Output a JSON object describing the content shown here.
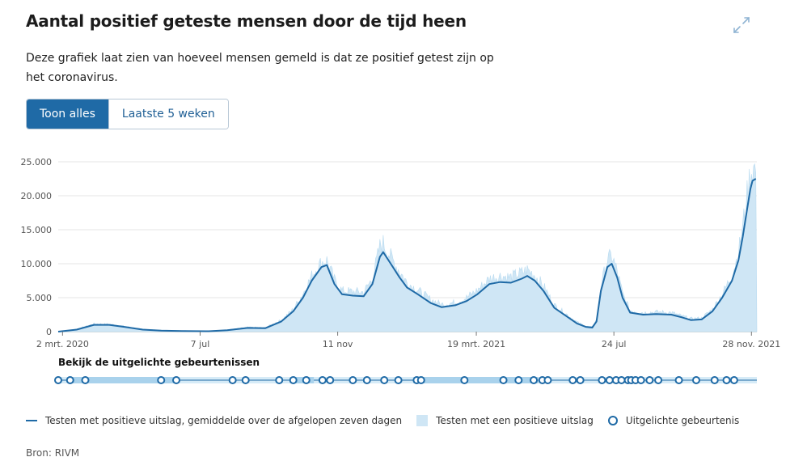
{
  "header": {
    "title": "Aantal positief geteste mensen door de tijd heen",
    "description": "Deze grafiek laat zien van hoeveel mensen gemeld is dat ze positief getest zijn op het coronavirus."
  },
  "toggle": {
    "all_label": "Toon alles",
    "last_weeks_label": "Laatste 5 weken"
  },
  "events": {
    "label": "Bekijk de uitgelichte gebeurtenissen",
    "dates": [
      "2020-02-27",
      "2020-03-09",
      "2020-03-23",
      "2020-06-01",
      "2020-06-15",
      "2020-08-06",
      "2020-08-18",
      "2020-09-18",
      "2020-10-01",
      "2020-10-13",
      "2020-10-28",
      "2020-11-04",
      "2020-11-25",
      "2020-12-08",
      "2020-12-24",
      "2021-01-06",
      "2021-01-23",
      "2021-01-27",
      "2021-03-08",
      "2021-04-13",
      "2021-04-27",
      "2021-05-11",
      "2021-05-19",
      "2021-05-24",
      "2021-06-16",
      "2021-06-23",
      "2021-07-13",
      "2021-07-20",
      "2021-07-26",
      "2021-07-31",
      "2021-08-06",
      "2021-08-09",
      "2021-08-13",
      "2021-08-18",
      "2021-08-26",
      "2021-09-03",
      "2021-09-22",
      "2021-10-08",
      "2021-10-25",
      "2021-11-05",
      "2021-11-12"
    ],
    "ranges": [
      {
        "start": "2020-03-09",
        "end": "2020-06-15"
      },
      {
        "start": "2020-09-28",
        "end": "2020-10-20"
      },
      {
        "start": "2021-01-20",
        "end": "2021-05-15"
      }
    ]
  },
  "chart_data": {
    "type": "area",
    "x_start": "2020-02-27",
    "x_end": "2021-12-03",
    "xticks": [
      {
        "date": "2020-03-02",
        "label": "2 mrt. 2020"
      },
      {
        "date": "2020-07-07",
        "label": "7 jul"
      },
      {
        "date": "2020-11-11",
        "label": "11 nov"
      },
      {
        "date": "2021-03-19",
        "label": "19 mrt. 2021"
      },
      {
        "date": "2021-07-24",
        "label": "24 jul"
      },
      {
        "date": "2021-11-28",
        "label": "28 nov. 2021"
      }
    ],
    "ylim": [
      0,
      25000
    ],
    "yticks": [
      0,
      5000,
      10000,
      15000,
      20000,
      25000
    ],
    "ytick_labels": [
      "0",
      "5.000",
      "10.000",
      "15.000",
      "20.000",
      "25.000"
    ],
    "grid": true,
    "series": [
      {
        "name": "Testen met positieve uitslag, gemiddelde over de afgelopen zeven dagen",
        "kind": "line",
        "points": [
          [
            "2020-02-27",
            0
          ],
          [
            "2020-03-15",
            300
          ],
          [
            "2020-03-31",
            1000
          ],
          [
            "2020-04-14",
            1000
          ],
          [
            "2020-04-28",
            700
          ],
          [
            "2020-05-15",
            300
          ],
          [
            "2020-06-01",
            150
          ],
          [
            "2020-06-20",
            100
          ],
          [
            "2020-07-15",
            60
          ],
          [
            "2020-08-01",
            200
          ],
          [
            "2020-08-20",
            550
          ],
          [
            "2020-09-05",
            500
          ],
          [
            "2020-09-20",
            1500
          ],
          [
            "2020-10-01",
            3000
          ],
          [
            "2020-10-10",
            5000
          ],
          [
            "2020-10-18",
            7500
          ],
          [
            "2020-10-27",
            9500
          ],
          [
            "2020-11-01",
            9800
          ],
          [
            "2020-11-08",
            7000
          ],
          [
            "2020-11-15",
            5500
          ],
          [
            "2020-11-25",
            5300
          ],
          [
            "2020-12-05",
            5200
          ],
          [
            "2020-12-13",
            7000
          ],
          [
            "2020-12-20",
            11000
          ],
          [
            "2020-12-23",
            11700
          ],
          [
            "2020-12-30",
            10000
          ],
          [
            "2021-01-07",
            8000
          ],
          [
            "2021-01-14",
            6500
          ],
          [
            "2021-01-24",
            5500
          ],
          [
            "2021-02-05",
            4200
          ],
          [
            "2021-02-15",
            3600
          ],
          [
            "2021-02-28",
            3900
          ],
          [
            "2021-03-10",
            4500
          ],
          [
            "2021-03-20",
            5500
          ],
          [
            "2021-03-31",
            7000
          ],
          [
            "2021-04-10",
            7300
          ],
          [
            "2021-04-20",
            7200
          ],
          [
            "2021-04-30",
            7800
          ],
          [
            "2021-05-05",
            8200
          ],
          [
            "2021-05-12",
            7500
          ],
          [
            "2021-05-20",
            6000
          ],
          [
            "2021-05-30",
            3500
          ],
          [
            "2021-06-10",
            2300
          ],
          [
            "2021-06-20",
            1200
          ],
          [
            "2021-06-28",
            700
          ],
          [
            "2021-07-04",
            600
          ],
          [
            "2021-07-08",
            1500
          ],
          [
            "2021-07-12",
            6000
          ],
          [
            "2021-07-18",
            9500
          ],
          [
            "2021-07-22",
            10000
          ],
          [
            "2021-07-27",
            8000
          ],
          [
            "2021-08-01",
            5000
          ],
          [
            "2021-08-08",
            2800
          ],
          [
            "2021-08-20",
            2500
          ],
          [
            "2021-09-01",
            2600
          ],
          [
            "2021-09-15",
            2500
          ],
          [
            "2021-09-25",
            2100
          ],
          [
            "2021-10-03",
            1700
          ],
          [
            "2021-10-13",
            1800
          ],
          [
            "2021-10-23",
            3000
          ],
          [
            "2021-11-01",
            5000
          ],
          [
            "2021-11-10",
            7500
          ],
          [
            "2021-11-16",
            10500
          ],
          [
            "2021-11-20",
            14000
          ],
          [
            "2021-11-24",
            18000
          ],
          [
            "2021-11-27",
            21000
          ],
          [
            "2021-11-29",
            22200
          ],
          [
            "2021-12-02",
            22500
          ]
        ]
      },
      {
        "name": "Testen met een positieve uitslag",
        "kind": "area",
        "points": [
          [
            "2020-02-27",
            0
          ],
          [
            "2020-03-15",
            350
          ],
          [
            "2020-03-31",
            1150
          ],
          [
            "2020-04-14",
            1100
          ],
          [
            "2020-04-28",
            800
          ],
          [
            "2020-05-15",
            350
          ],
          [
            "2020-06-01",
            200
          ],
          [
            "2020-06-20",
            150
          ],
          [
            "2020-07-15",
            100
          ],
          [
            "2020-08-01",
            250
          ],
          [
            "2020-08-20",
            650
          ],
          [
            "2020-09-05",
            600
          ],
          [
            "2020-09-20",
            1700
          ],
          [
            "2020-10-01",
            3300
          ],
          [
            "2020-10-10",
            5600
          ],
          [
            "2020-10-18",
            8200
          ],
          [
            "2020-10-27",
            10200
          ],
          [
            "2020-11-01",
            10500
          ],
          [
            "2020-11-08",
            7600
          ],
          [
            "2020-11-15",
            6000
          ],
          [
            "2020-11-25",
            5900
          ],
          [
            "2020-12-05",
            5800
          ],
          [
            "2020-12-13",
            7800
          ],
          [
            "2020-12-20",
            12500
          ],
          [
            "2020-12-23",
            13000
          ],
          [
            "2020-12-30",
            11000
          ],
          [
            "2021-01-07",
            8900
          ],
          [
            "2021-01-14",
            7200
          ],
          [
            "2021-01-24",
            6100
          ],
          [
            "2021-02-05",
            4700
          ],
          [
            "2021-02-15",
            4000
          ],
          [
            "2021-02-28",
            4300
          ],
          [
            "2021-03-10",
            5000
          ],
          [
            "2021-03-20",
            6100
          ],
          [
            "2021-03-31",
            7800
          ],
          [
            "2021-04-10",
            8200
          ],
          [
            "2021-04-20",
            8000
          ],
          [
            "2021-04-30",
            8700
          ],
          [
            "2021-05-05",
            9100
          ],
          [
            "2021-05-12",
            8300
          ],
          [
            "2021-05-20",
            6700
          ],
          [
            "2021-05-30",
            3900
          ],
          [
            "2021-06-10",
            2600
          ],
          [
            "2021-06-20",
            1400
          ],
          [
            "2021-06-28",
            800
          ],
          [
            "2021-07-04",
            700
          ],
          [
            "2021-07-08",
            1800
          ],
          [
            "2021-07-12",
            6800
          ],
          [
            "2021-07-18",
            10500
          ],
          [
            "2021-07-22",
            11200
          ],
          [
            "2021-07-27",
            8900
          ],
          [
            "2021-08-01",
            5600
          ],
          [
            "2021-08-08",
            3100
          ],
          [
            "2021-08-20",
            2800
          ],
          [
            "2021-09-01",
            2900
          ],
          [
            "2021-09-15",
            2800
          ],
          [
            "2021-09-25",
            2300
          ],
          [
            "2021-10-03",
            1900
          ],
          [
            "2021-10-13",
            2000
          ],
          [
            "2021-10-23",
            3300
          ],
          [
            "2021-11-01",
            5500
          ],
          [
            "2021-11-10",
            8300
          ],
          [
            "2021-11-16",
            11600
          ],
          [
            "2021-11-20",
            15500
          ],
          [
            "2021-11-24",
            20000
          ],
          [
            "2021-11-27",
            23300
          ],
          [
            "2021-11-29",
            24000
          ],
          [
            "2021-12-02",
            23800
          ]
        ]
      }
    ],
    "legend": [
      {
        "key": "line",
        "label": "Testen met positieve uitslag, gemiddelde over de afgelopen zeven dagen"
      },
      {
        "key": "area",
        "label": "Testen met een positieve uitslag"
      },
      {
        "key": "events",
        "label": "Uitgelichte gebeurtenis"
      }
    ]
  },
  "source": "Bron: RIVM",
  "colors": {
    "line": "#1f6aa6",
    "area": "#cfe6f5",
    "accent": "#1f6aa6",
    "grid": "#e6e6e6"
  }
}
